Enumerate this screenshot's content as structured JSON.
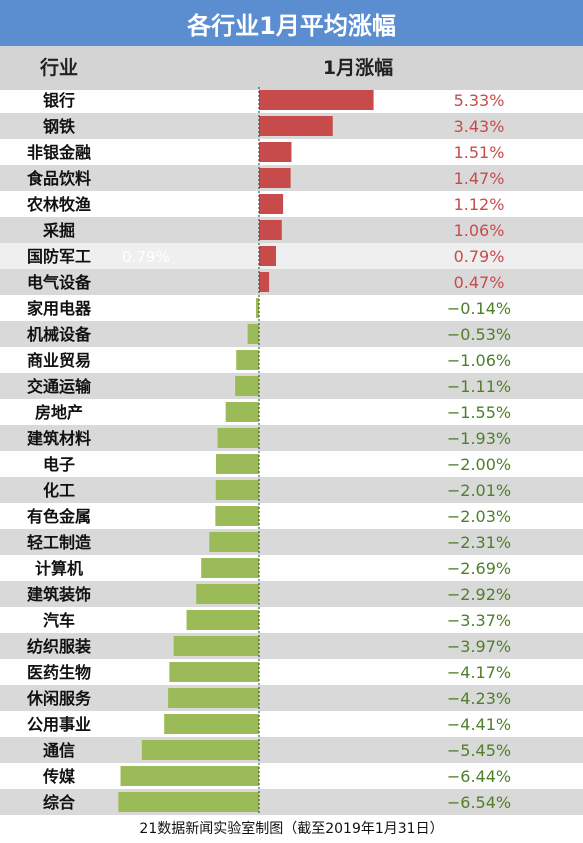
{
  "title": "各行业1月平均涨幅",
  "header": {
    "industry_label": "行业",
    "change_label": "1月涨幅"
  },
  "footer": "21数据新闻实验室制图（截至2019年1月31日）",
  "colors": {
    "positive": "#c84b4b",
    "negative": "#9bbb59",
    "title_bg": "#5b8dd1",
    "stripe": "#d9d9d9"
  },
  "hover_label": "0.79%",
  "chart_data": {
    "type": "bar",
    "orientation": "horizontal",
    "unit": "%",
    "categories": [
      "银行",
      "钢铁",
      "非银金融",
      "食品饮料",
      "农林牧渔",
      "采掘",
      "国防军工",
      "电气设备",
      "家用电器",
      "机械设备",
      "商业贸易",
      "交通运输",
      "房地产",
      "建筑材料",
      "电子",
      "化工",
      "有色金属",
      "轻工制造",
      "计算机",
      "建筑装饰",
      "汽车",
      "纺织服装",
      "医药生物",
      "休闲服务",
      "公用事业",
      "通信",
      "传媒",
      "综合"
    ],
    "values": [
      5.33,
      3.43,
      1.51,
      1.47,
      1.12,
      1.06,
      0.79,
      0.47,
      -0.14,
      -0.53,
      -1.06,
      -1.11,
      -1.55,
      -1.93,
      -2.0,
      -2.01,
      -2.03,
      -2.31,
      -2.69,
      -2.92,
      -3.37,
      -3.97,
      -4.17,
      -4.23,
      -4.41,
      -5.45,
      -6.44,
      -6.54
    ],
    "labels": [
      "5.33%",
      "3.43%",
      "1.51%",
      "1.47%",
      "1.12%",
      "1.06%",
      "0.79%",
      "0.47%",
      "−0.14%",
      "−0.53%",
      "−1.06%",
      "−1.11%",
      "−1.55%",
      "−1.93%",
      "−2.00%",
      "−2.01%",
      "−2.03%",
      "−2.31%",
      "−2.69%",
      "−2.92%",
      "−3.37%",
      "−3.97%",
      "−4.17%",
      "−4.23%",
      "−4.41%",
      "−5.45%",
      "−6.44%",
      "−6.54%"
    ],
    "xlim": [
      -6.54,
      5.33
    ]
  }
}
